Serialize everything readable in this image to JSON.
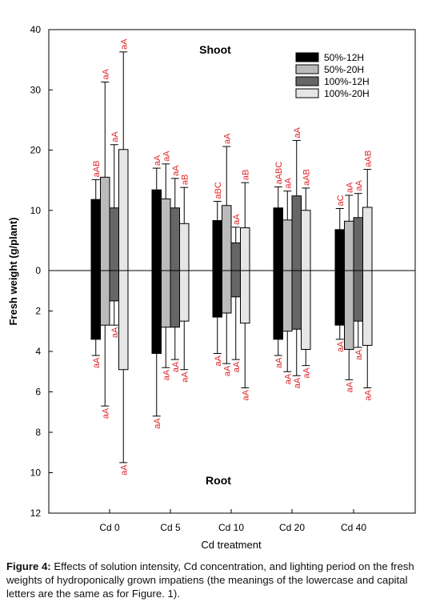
{
  "chart_data": {
    "type": "bar",
    "xlabel": "Cd treatment",
    "ylabel": "Fresh weight (g/plant)",
    "categories": [
      "Cd 0",
      "Cd 5",
      "Cd 10",
      "Cd 20",
      "Cd 40"
    ],
    "panels": {
      "top": {
        "label": "Shoot",
        "ylim": [
          0,
          40
        ],
        "ticks": [
          0,
          10,
          20,
          30,
          40
        ]
      },
      "bottom": {
        "label": "Root",
        "ylim": [
          0,
          12
        ],
        "ticks": [
          0,
          2,
          4,
          6,
          8,
          10,
          12
        ]
      }
    },
    "legend_position": "top-right",
    "series": [
      {
        "name": "50%-12H",
        "color": "#000000",
        "shoot": [
          11.8,
          13.4,
          8.3,
          10.4,
          6.8
        ],
        "shoot_err": [
          3.3,
          3.6,
          3.2,
          3.5,
          3.5
        ],
        "shoot_labels": [
          "aAB",
          "aA",
          "aBC",
          "aABC",
          "aC"
        ],
        "root": [
          3.4,
          4.1,
          2.3,
          3.4,
          2.7
        ],
        "root_err": [
          0.8,
          3.1,
          1.8,
          0.8,
          0.7
        ],
        "root_labels": [
          "aA",
          "aA",
          "aA",
          "aA",
          "aA"
        ]
      },
      {
        "name": "50%-20H",
        "color": "#bbbbbb",
        "shoot": [
          15.5,
          11.9,
          10.8,
          8.4,
          8.2
        ],
        "shoot_err": [
          15.8,
          5.8,
          9.8,
          4.8,
          4.3
        ],
        "shoot_labels": [
          "aA",
          "aA",
          "aA",
          "aA",
          "aA"
        ],
        "root": [
          2.7,
          2.8,
          2.1,
          3.0,
          3.9
        ],
        "root_err": [
          4.0,
          2.0,
          2.5,
          2.0,
          1.5
        ],
        "root_labels": [
          "aA",
          "aA",
          "aA",
          "aA",
          "aA"
        ]
      },
      {
        "name": "100%-12H",
        "color": "#666666",
        "shoot": [
          10.4,
          10.4,
          4.6,
          12.4,
          8.8
        ],
        "shoot_err": [
          10.5,
          4.9,
          2.6,
          9.2,
          4.0
        ],
        "shoot_labels": [
          "aA",
          "aA",
          "aA",
          "aA",
          "aA"
        ],
        "root": [
          1.5,
          2.8,
          1.3,
          2.9,
          2.5
        ],
        "root_err": [
          1.2,
          1.6,
          3.1,
          2.3,
          1.3
        ],
        "root_labels": [
          "aA",
          "aA",
          "aA",
          "aA",
          "aA"
        ]
      },
      {
        "name": "100%-20H",
        "color": "#e6e6e6",
        "shoot": [
          20.1,
          7.8,
          7.1,
          10.0,
          10.5
        ],
        "shoot_err": [
          16.2,
          6.0,
          7.5,
          3.7,
          6.3
        ],
        "shoot_labels": [
          "aA",
          "aB",
          "aB",
          "aAB",
          "aAB"
        ],
        "root": [
          4.9,
          2.5,
          2.6,
          3.9,
          3.7
        ],
        "root_err": [
          4.6,
          2.4,
          3.2,
          0.8,
          2.1
        ],
        "root_labels": [
          "aA",
          "aA",
          "aA",
          "aA",
          "aA"
        ]
      }
    ]
  },
  "caption": {
    "figure_label": "Figure 4:",
    "text": " Effects of solution intensity, Cd concentration, and lighting period on the fresh weights of hydroponically grown impatiens (the meanings of the lowercase and capital letters are the same as for Figure. 1)."
  }
}
